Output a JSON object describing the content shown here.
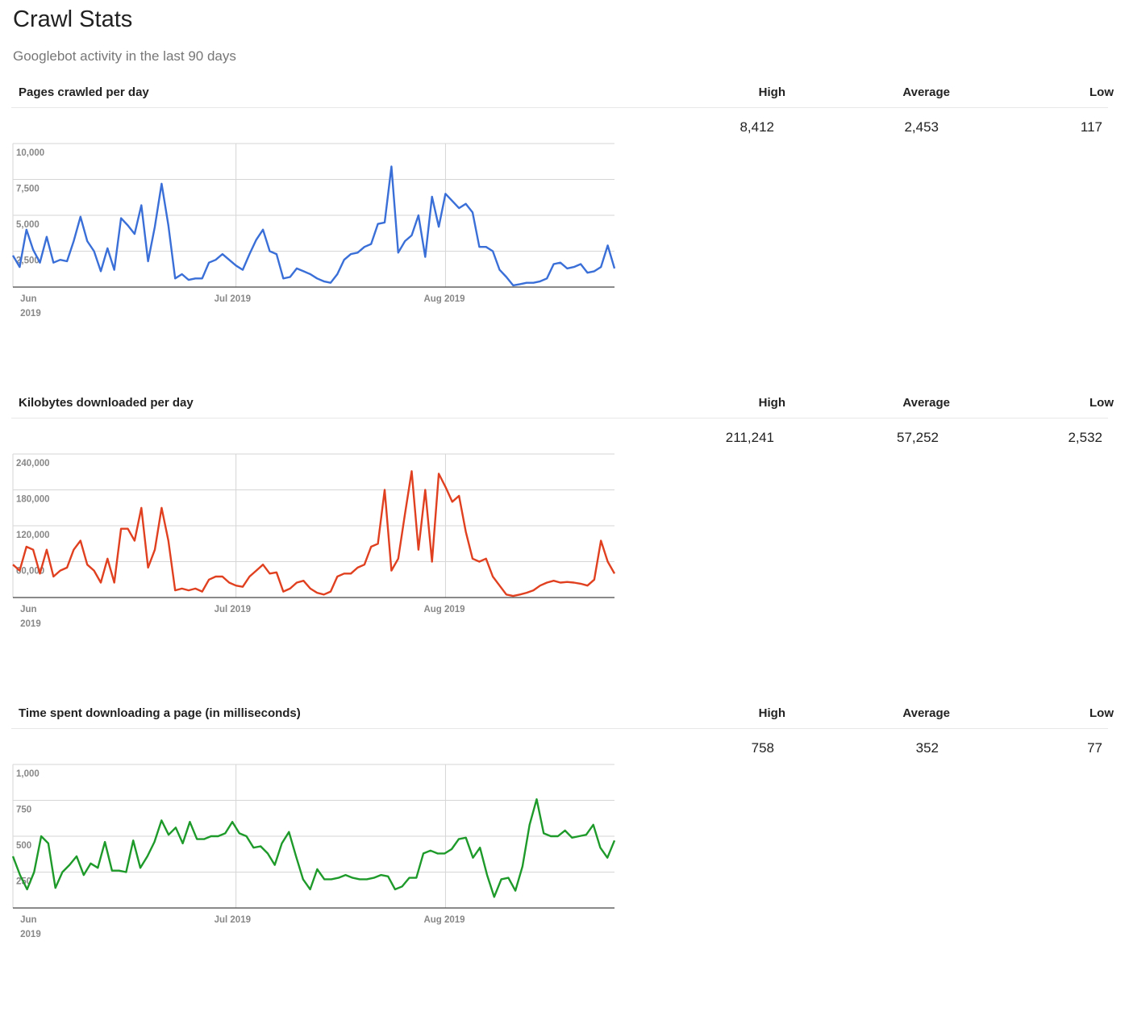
{
  "page": {
    "title": "Crawl Stats",
    "subtitle": "Googlebot activity in the last 90 days"
  },
  "stat_headers": {
    "high": "High",
    "average": "Average",
    "low": "Low"
  },
  "sections": [
    {
      "title": "Pages crawled per day",
      "high": "8,412",
      "average": "2,453",
      "low": "117",
      "color": "#3a6fd8"
    },
    {
      "title": "Kilobytes downloaded per day",
      "high": "211,241",
      "average": "57,252",
      "low": "2,532",
      "color": "#e0401f"
    },
    {
      "title": "Time spent downloading a page (in milliseconds)",
      "high": "758",
      "average": "352",
      "low": "77",
      "color": "#1e9a2a"
    }
  ],
  "chart_data": [
    {
      "type": "line",
      "title": "Pages crawled per day",
      "color": "#3a6fd8",
      "ylim": [
        0,
        10000
      ],
      "y_ticks": [
        "10,000",
        "7,500",
        "5,000",
        "2,500"
      ],
      "y_tick_values": [
        10000,
        7500,
        5000,
        2500
      ],
      "x_ticks": [
        {
          "label": "Jun",
          "label2": "2019",
          "day": 3
        },
        {
          "label": "Jul 2019",
          "day": 33
        },
        {
          "label": "Aug 2019",
          "day": 64
        }
      ],
      "x_range_days": [
        0,
        89
      ],
      "grid": true,
      "values": [
        2200,
        1400,
        4000,
        2600,
        1700,
        3500,
        1700,
        1900,
        1800,
        3200,
        4900,
        3200,
        2500,
        1100,
        2700,
        1200,
        4800,
        4300,
        3700,
        5700,
        1800,
        4200,
        7200,
        4300,
        600,
        900,
        500,
        600,
        600,
        1700,
        1900,
        2300,
        1900,
        1500,
        1200,
        2300,
        3300,
        4000,
        2500,
        2300,
        600,
        700,
        1300,
        1100,
        900,
        600,
        400,
        300,
        900,
        1900,
        2300,
        2400,
        2800,
        3000,
        4400,
        4500,
        8400,
        2400,
        3200,
        3600,
        5000,
        2100,
        6300,
        4200,
        6500,
        6000,
        5500,
        5800,
        5200,
        2800,
        2800,
        2500,
        1200,
        700,
        117,
        200,
        300,
        300,
        400,
        600,
        1600,
        1700,
        1300,
        1400,
        1600,
        1000,
        1100,
        1400,
        2900,
        1300
      ]
    },
    {
      "type": "line",
      "title": "Kilobytes downloaded per day",
      "color": "#e0401f",
      "ylim": [
        0,
        240000
      ],
      "y_ticks": [
        "240,000",
        "180,000",
        "120,000",
        "60,000"
      ],
      "y_tick_values": [
        240000,
        180000,
        120000,
        60000
      ],
      "x_ticks": [
        {
          "label": "Jun",
          "label2": "2019",
          "day": 3
        },
        {
          "label": "Jul 2019",
          "day": 33
        },
        {
          "label": "Aug 2019",
          "day": 64
        }
      ],
      "x_range_days": [
        0,
        89
      ],
      "grid": true,
      "values": [
        55000,
        45000,
        85000,
        80000,
        40000,
        80000,
        35000,
        45000,
        50000,
        80000,
        95000,
        55000,
        45000,
        25000,
        65000,
        25000,
        115000,
        115000,
        95000,
        150000,
        50000,
        80000,
        150000,
        95000,
        12000,
        15000,
        12000,
        15000,
        10000,
        30000,
        35000,
        35000,
        25000,
        20000,
        18000,
        35000,
        45000,
        55000,
        40000,
        42000,
        10000,
        15000,
        25000,
        28000,
        15000,
        8000,
        5000,
        10000,
        35000,
        40000,
        40000,
        50000,
        55000,
        85000,
        90000,
        180000,
        45000,
        65000,
        140000,
        211241,
        80000,
        180000,
        60000,
        207000,
        185000,
        160000,
        170000,
        110000,
        65000,
        60000,
        65000,
        35000,
        20000,
        5000,
        2532,
        5000,
        8000,
        12000,
        20000,
        25000,
        28000,
        25000,
        26000,
        25000,
        23000,
        20000,
        30000,
        95000,
        60000,
        40000
      ]
    },
    {
      "type": "line",
      "title": "Time spent downloading a page (in milliseconds)",
      "color": "#1e9a2a",
      "ylim": [
        0,
        1000
      ],
      "y_ticks": [
        "1,000",
        "750",
        "500",
        "250"
      ],
      "y_tick_values": [
        1000,
        750,
        500,
        250
      ],
      "x_ticks": [
        {
          "label": "Jun",
          "label2": "2019",
          "day": 3
        },
        {
          "label": "Jul 2019",
          "day": 33
        },
        {
          "label": "Aug 2019",
          "day": 64
        }
      ],
      "x_range_days": [
        0,
        89
      ],
      "grid": true,
      "values": [
        360,
        230,
        130,
        250,
        500,
        450,
        140,
        250,
        300,
        360,
        230,
        310,
        280,
        460,
        260,
        260,
        250,
        470,
        280,
        360,
        460,
        610,
        510,
        560,
        450,
        600,
        480,
        480,
        500,
        500,
        520,
        600,
        520,
        500,
        420,
        430,
        380,
        300,
        450,
        530,
        360,
        200,
        130,
        270,
        200,
        200,
        210,
        230,
        210,
        200,
        200,
        210,
        230,
        220,
        130,
        150,
        210,
        210,
        380,
        400,
        380,
        380,
        410,
        480,
        490,
        350,
        420,
        230,
        77,
        200,
        210,
        120,
        290,
        580,
        758,
        520,
        500,
        500,
        540,
        490,
        500,
        510,
        580,
        420,
        350,
        470
      ]
    }
  ]
}
